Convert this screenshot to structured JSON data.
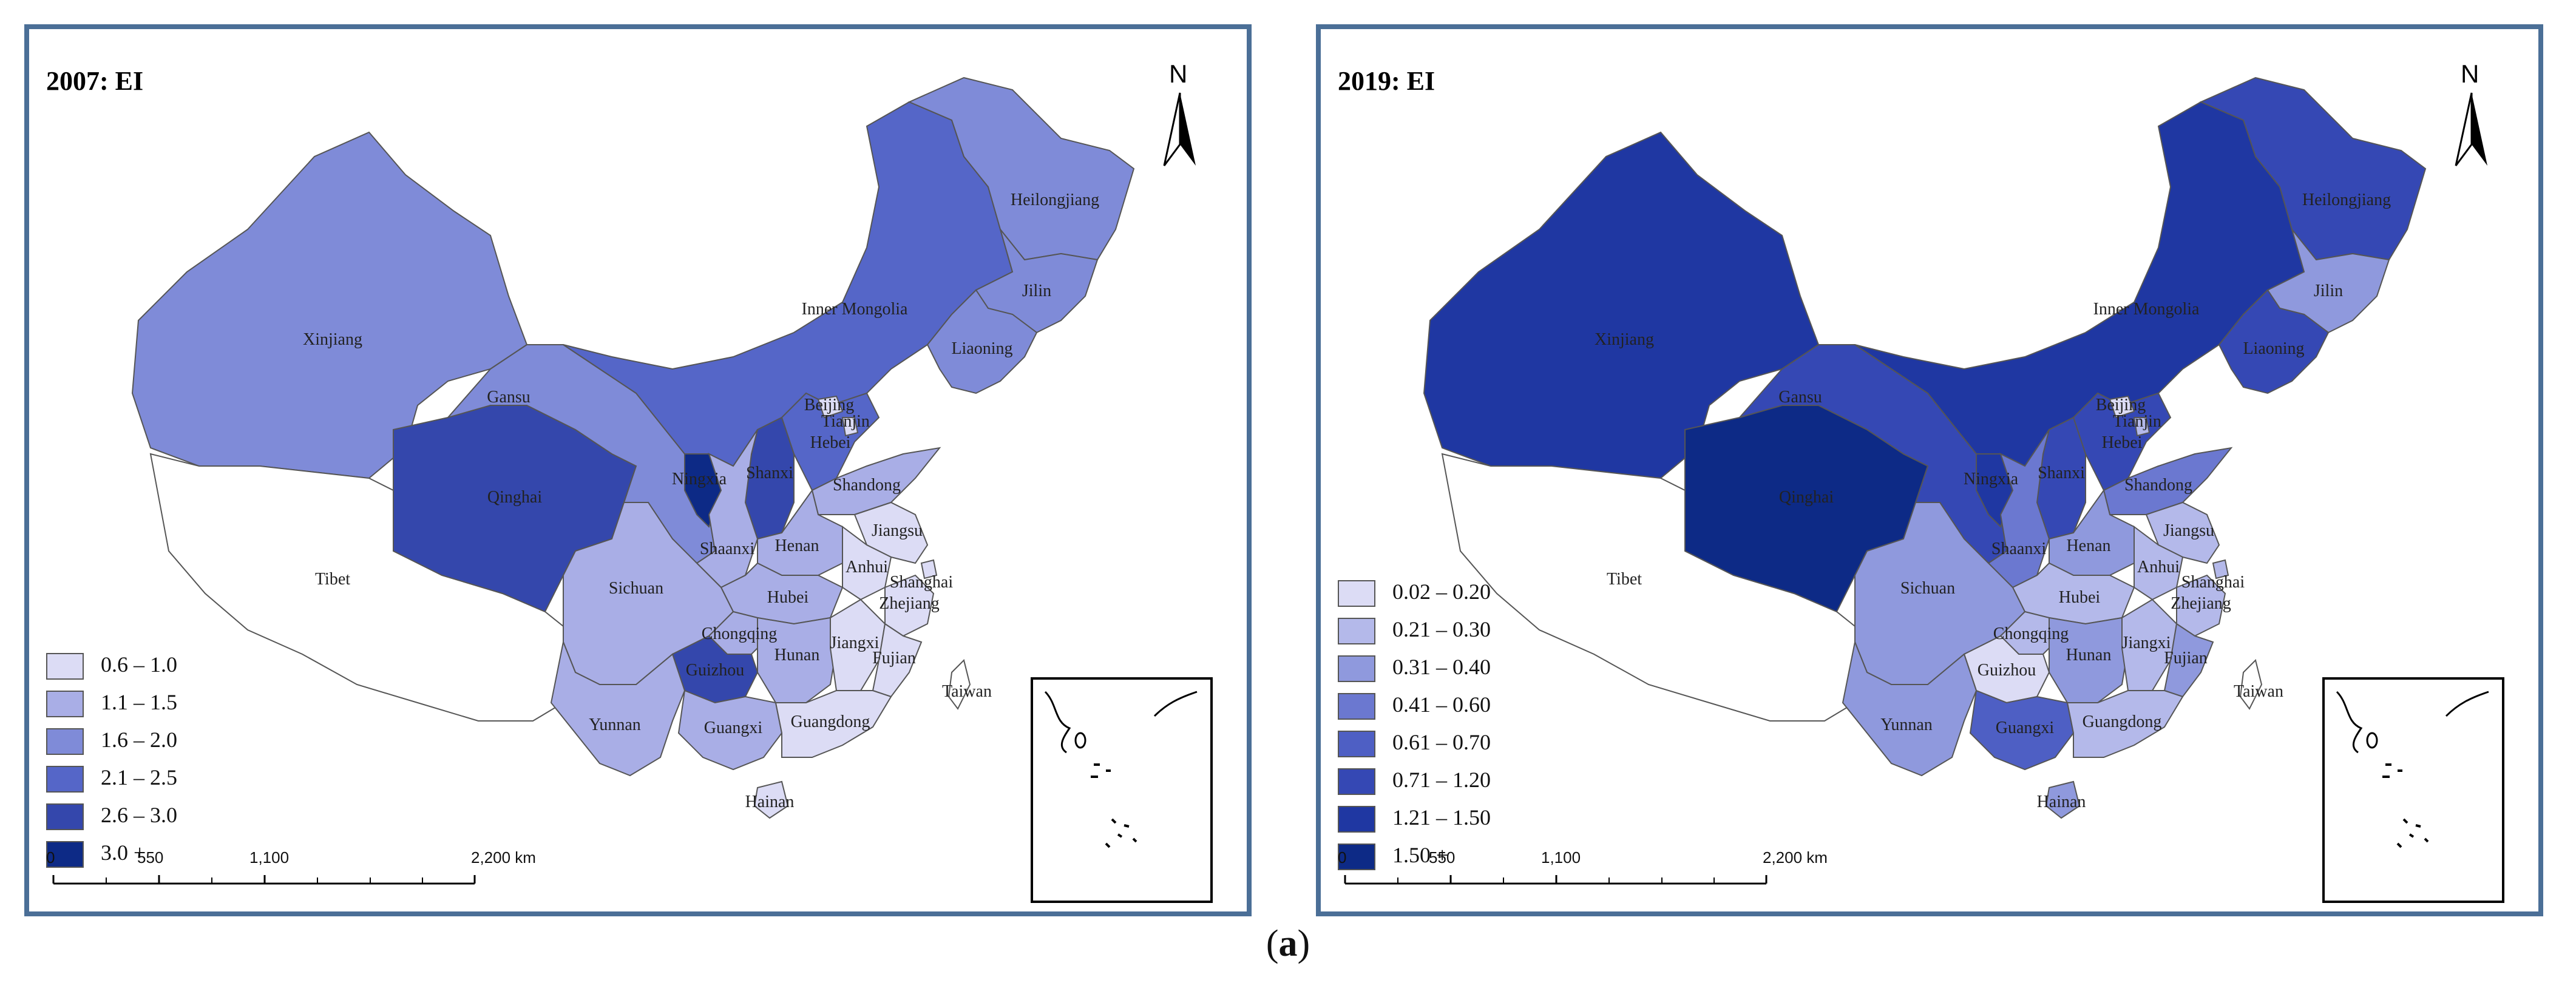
{
  "caption": {
    "open": "(",
    "letter": "a",
    "close": ")"
  },
  "scale": {
    "labels": [
      "0",
      "550",
      "1,100",
      "2,200 km"
    ]
  },
  "north_letter": "N",
  "panels": [
    {
      "title": "2007: EI",
      "legend": [
        {
          "label": "0.6 – 1.0",
          "color": "#dcdcf5"
        },
        {
          "label": "1.1 – 1.5",
          "color": "#a9aee6"
        },
        {
          "label": "1.6 – 2.0",
          "color": "#7f8bd8"
        },
        {
          "label": "2.1 – 2.5",
          "color": "#5566c8"
        },
        {
          "label": "2.6 – 3.0",
          "color": "#3447ac"
        },
        {
          "label": "3.0 +",
          "color": "#0d2a86"
        }
      ],
      "provinces": {
        "Xinjiang": "#7f8bd8",
        "Tibet": "#ffffff",
        "Qinghai": "#3447ac",
        "Gansu": "#7f8bd8",
        "Inner Mongolia": "#5566c8",
        "Heilongjiang": "#7f8bd8",
        "Jilin": "#7f8bd8",
        "Liaoning": "#7f8bd8",
        "Ningxia": "#0d2a86",
        "Shanxi": "#3447ac",
        "Hebei": "#5566c8",
        "Beijing": "#dcdcf5",
        "Tianjin": "#dcdcf5",
        "Shandong": "#a9aee6",
        "Shaanxi": "#a9aee6",
        "Henan": "#a9aee6",
        "Jiangsu": "#dcdcf5",
        "Shanghai": "#dcdcf5",
        "Anhui": "#dcdcf5",
        "Hubei": "#a9aee6",
        "Sichuan": "#a9aee6",
        "Chongqing": "#a9aee6",
        "Zhejiang": "#dcdcf5",
        "Hunan": "#a9aee6",
        "Jiangxi": "#dcdcf5",
        "Guizhou": "#3447ac",
        "Fujian": "#dcdcf5",
        "Yunnan": "#a9aee6",
        "Guangxi": "#a9aee6",
        "Guangdong": "#dcdcf5",
        "Taiwan": "#ffffff",
        "Hainan": "#dcdcf5"
      }
    },
    {
      "title": "2019: EI",
      "legend": [
        {
          "label": "0.02 – 0.20",
          "color": "#dcdcf5"
        },
        {
          "label": "0.21 – 0.30",
          "color": "#b4b9ea"
        },
        {
          "label": "0.31 – 0.40",
          "color": "#8f99dd"
        },
        {
          "label": "0.41 – 0.60",
          "color": "#6b78d0"
        },
        {
          "label": "0.61 – 0.70",
          "color": "#4e5fc4"
        },
        {
          "label": "0.71 – 1.20",
          "color": "#3548b4"
        },
        {
          "label": "1.21 – 1.50",
          "color": "#1f37a2"
        },
        {
          "label": "1.50 +",
          "color": "#0d2a86"
        }
      ],
      "provinces": {
        "Xinjiang": "#1f37a2",
        "Tibet": "#ffffff",
        "Qinghai": "#0d2a86",
        "Gansu": "#3548b4",
        "Inner Mongolia": "#1f37a2",
        "Heilongjiang": "#3548b4",
        "Jilin": "#8f99dd",
        "Liaoning": "#3548b4",
        "Ningxia": "#1f37a2",
        "Shanxi": "#3548b4",
        "Hebei": "#3548b4",
        "Beijing": "#dcdcf5",
        "Tianjin": "#b4b9ea",
        "Shandong": "#6b78d0",
        "Shaanxi": "#6b78d0",
        "Henan": "#8f99dd",
        "Jiangsu": "#b4b9ea",
        "Shanghai": "#b4b9ea",
        "Anhui": "#b4b9ea",
        "Hubei": "#b4b9ea",
        "Sichuan": "#8f99dd",
        "Chongqing": "#b4b9ea",
        "Zhejiang": "#b4b9ea",
        "Hunan": "#8f99dd",
        "Jiangxi": "#b4b9ea",
        "Guizhou": "#dcdcf5",
        "Fujian": "#8f99dd",
        "Yunnan": "#8f99dd",
        "Guangxi": "#4e5fc4",
        "Guangdong": "#b4b9ea",
        "Taiwan": "#ffffff",
        "Hainan": "#8f99dd"
      }
    }
  ]
}
